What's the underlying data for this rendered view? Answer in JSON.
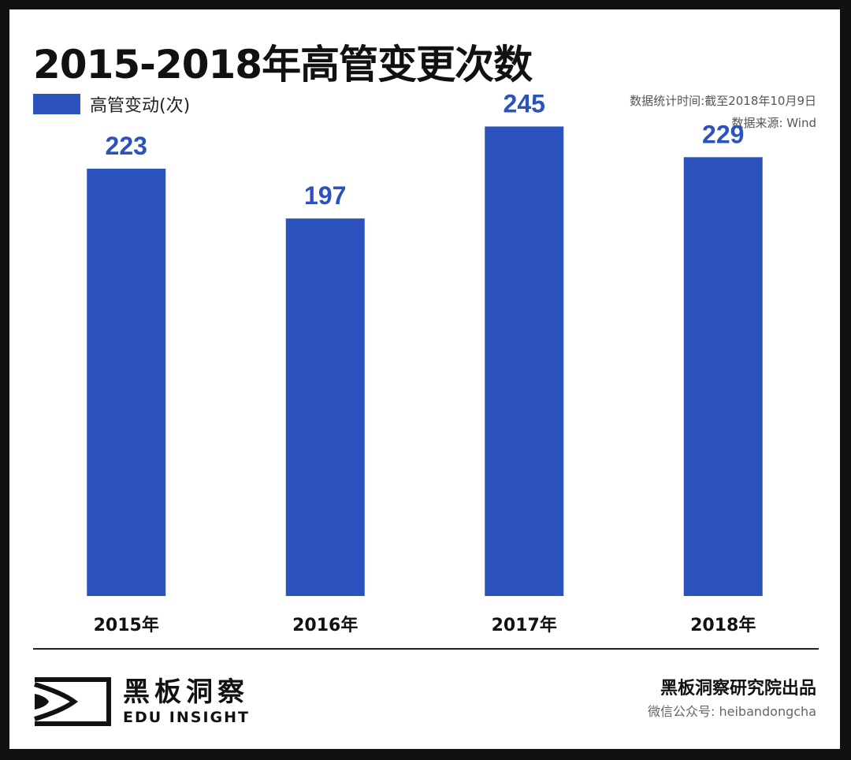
{
  "title": "2015-2018年高管变更次数",
  "legend": {
    "label": "高管变动(次)"
  },
  "meta": {
    "stat_time": "数据统计时间:截至2018年10月9日",
    "source": "数据来源: Wind"
  },
  "colors": {
    "bar": "#2c52bd",
    "value_label": "#2c52bd",
    "background": "#111111"
  },
  "chart_data": {
    "type": "bar",
    "title": "2015-2018年高管变更次数",
    "categories": [
      "2015年",
      "2016年",
      "2017年",
      "2018年"
    ],
    "series": [
      {
        "name": "高管变动(次)",
        "values": [
          223,
          197,
          245,
          229
        ]
      }
    ],
    "data_labels": [
      "223",
      "197",
      "245",
      "229"
    ],
    "xlabel": "",
    "ylabel": "",
    "ylim": [
      0,
      260
    ],
    "grid": false,
    "legend_position": "top-left"
  },
  "footer": {
    "logo_cn": "黑板洞察",
    "logo_en": "EDU INSIGHT",
    "logo_icon": "eye-bracket-logo-icon",
    "org": "黑板洞察研究院出品",
    "wechat": "微信公众号: heibandongcha"
  }
}
